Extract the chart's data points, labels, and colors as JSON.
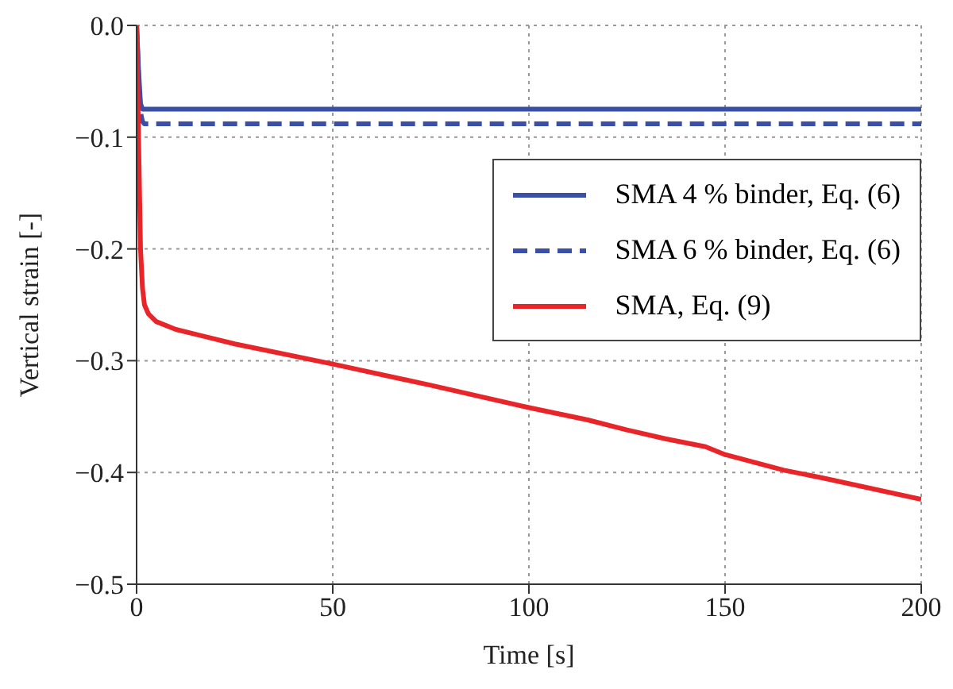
{
  "chart_data": {
    "type": "line",
    "xlabel": "Time [s]",
    "ylabel": "Vertical strain [-]",
    "xlim": [
      0,
      200
    ],
    "xticks": [
      0,
      50,
      100,
      150,
      200
    ],
    "ylim": [
      -0.5,
      0
    ],
    "yticks": [
      {
        "value": -0.5,
        "label": "−0.5"
      },
      {
        "value": -0.4,
        "label": "−0.4"
      },
      {
        "value": -0.3,
        "label": "−0.3"
      },
      {
        "value": -0.2,
        "label": "−0.2"
      },
      {
        "value": -0.1,
        "label": "−0.1"
      },
      {
        "value": 0,
        "label": "0.0"
      }
    ],
    "grid": true,
    "legend": "top right",
    "marker": "none",
    "series": [
      {
        "name": "SMA 4 % binder, Eq. (6)",
        "color": "#3a4fa8",
        "line_style": "solid",
        "x": [
          0,
          0.5,
          1,
          1.5,
          200
        ],
        "values": [
          0,
          -0.04,
          -0.07,
          -0.075,
          -0.075
        ]
      },
      {
        "name": "SMA 6 % binder, Eq. (6)",
        "color": "#3a4fa8",
        "line_style": "dashed",
        "x": [
          0,
          0.5,
          1,
          1.5,
          2,
          200
        ],
        "values": [
          0,
          -0.045,
          -0.078,
          -0.086,
          -0.088,
          -0.088
        ]
      },
      {
        "name": "SMA, Eq. (9)",
        "color": "#e8262a",
        "line_style": "solid",
        "x": [
          0,
          0.5,
          1,
          1.5,
          2,
          3,
          5,
          10,
          25,
          50,
          75,
          100,
          115,
          125,
          135,
          145,
          150,
          165,
          175,
          200
        ],
        "values": [
          0,
          -0.1,
          -0.2,
          -0.235,
          -0.25,
          -0.258,
          -0.265,
          -0.272,
          -0.285,
          -0.303,
          -0.322,
          -0.342,
          -0.353,
          -0.362,
          -0.37,
          -0.377,
          -0.384,
          -0.398,
          -0.405,
          -0.424
        ]
      }
    ]
  }
}
